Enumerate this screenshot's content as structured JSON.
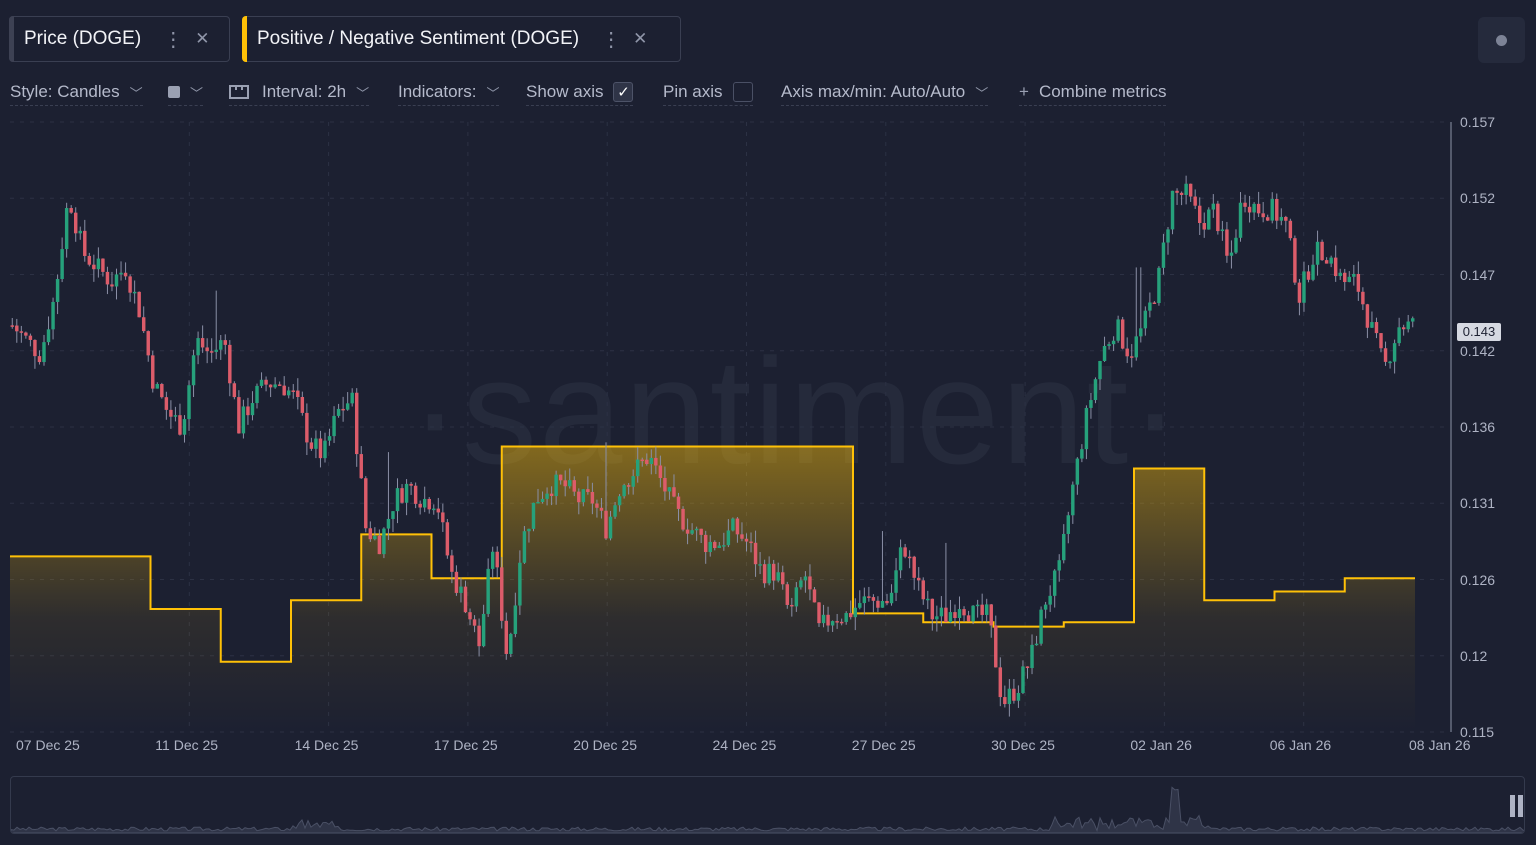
{
  "tabs": [
    {
      "label": "Price (DOGE)",
      "color": "#3d4153"
    },
    {
      "label": "Positive / Negative Sentiment (DOGE)",
      "color": "#ffc107"
    }
  ],
  "toolbar": {
    "style_label": "Style: Candles",
    "interval_label": "Interval: 2h",
    "indicators_label": "Indicators:",
    "show_axis_label": "Show axis",
    "show_axis_checked": true,
    "pin_axis_label": "Pin axis",
    "pin_axis_checked": false,
    "axis_minmax_label": "Axis max/min: Auto/Auto",
    "combine_label": "Combine metrics"
  },
  "watermark": "·santiment·",
  "current_price_label": "0.143",
  "colors": {
    "up": "#26a17b",
    "down": "#dc5c6a",
    "sentiment": "#ffc107"
  },
  "chart_data": {
    "type": "line",
    "x_tick_labels": [
      "07 Dec 25",
      "11 Dec 25",
      "14 Dec 25",
      "17 Dec 25",
      "20 Dec 25",
      "24 Dec 25",
      "27 Dec 25",
      "30 Dec 25",
      "02 Jan 26",
      "06 Jan 26",
      "08 Jan 26"
    ],
    "y_tick_labels": [
      "0.157",
      "0.152",
      "0.147",
      "0.142",
      "0.136",
      "0.131",
      "0.126",
      "0.12",
      "0.115"
    ],
    "ylim": [
      0.115,
      0.157
    ],
    "series": [
      {
        "name": "Price (DOGE)",
        "type": "candles",
        "close_path": [
          0.143,
          0.142,
          0.141,
          0.145,
          0.152,
          0.148,
          0.147,
          0.146,
          0.147,
          0.144,
          0.139,
          0.137,
          0.136,
          0.142,
          0.141,
          0.142,
          0.136,
          0.138,
          0.139,
          0.139,
          0.138,
          0.135,
          0.134,
          0.137,
          0.138,
          0.129,
          0.128,
          0.131,
          0.132,
          0.131,
          0.131,
          0.126,
          0.124,
          0.121,
          0.128,
          0.12,
          0.128,
          0.131,
          0.132,
          0.132,
          0.131,
          0.131,
          0.129,
          0.132,
          0.133,
          0.134,
          0.132,
          0.13,
          0.129,
          0.128,
          0.128,
          0.129,
          0.128,
          0.126,
          0.126,
          0.123,
          0.126,
          0.122,
          0.123,
          0.123,
          0.124,
          0.124,
          0.124,
          0.128,
          0.125,
          0.123,
          0.123,
          0.124,
          0.123,
          0.123,
          0.117,
          0.118,
          0.12,
          0.124,
          0.126,
          0.132,
          0.137,
          0.141,
          0.143,
          0.141,
          0.143,
          0.146,
          0.152,
          0.152,
          0.15,
          0.151,
          0.147,
          0.152,
          0.151,
          0.151,
          0.15,
          0.145,
          0.148,
          0.148,
          0.146,
          0.146,
          0.143,
          0.14,
          0.143,
          0.143
        ]
      },
      {
        "name": "Positive / Negative Sentiment (DOGE)",
        "type": "step",
        "values": [
          0.4,
          0.4,
          0.4,
          0.4,
          0.4,
          0.4,
          0.4,
          0.4,
          0.4,
          0.4,
          0.28,
          0.28,
          0.28,
          0.28,
          0.28,
          0.16,
          0.16,
          0.16,
          0.16,
          0.16,
          0.3,
          0.3,
          0.3,
          0.3,
          0.3,
          0.45,
          0.45,
          0.45,
          0.45,
          0.45,
          0.35,
          0.35,
          0.35,
          0.35,
          0.35,
          0.65,
          0.65,
          0.65,
          0.65,
          0.65,
          0.65,
          0.65,
          0.65,
          0.65,
          0.65,
          0.65,
          0.65,
          0.65,
          0.65,
          0.65,
          0.65,
          0.65,
          0.65,
          0.65,
          0.65,
          0.65,
          0.65,
          0.65,
          0.65,
          0.65,
          0.27,
          0.27,
          0.27,
          0.27,
          0.27,
          0.25,
          0.25,
          0.25,
          0.25,
          0.25,
          0.24,
          0.24,
          0.24,
          0.24,
          0.24,
          0.25,
          0.25,
          0.25,
          0.25,
          0.25,
          0.6,
          0.6,
          0.6,
          0.6,
          0.6,
          0.3,
          0.3,
          0.3,
          0.3,
          0.3,
          0.32,
          0.32,
          0.32,
          0.32,
          0.32,
          0.35,
          0.35,
          0.35,
          0.35,
          0.35
        ]
      }
    ]
  }
}
